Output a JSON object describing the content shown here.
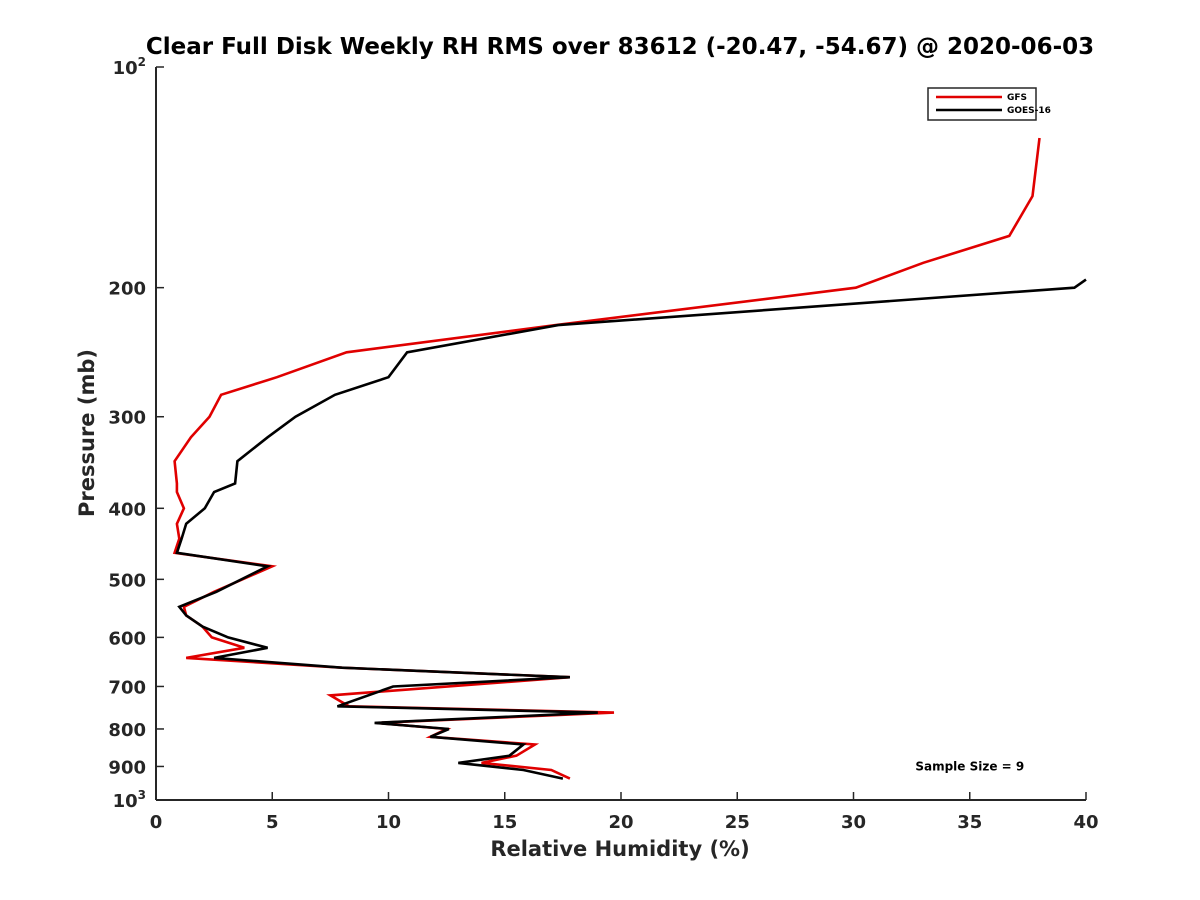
{
  "chart_data": {
    "type": "line",
    "title": "Clear Full Disk Weekly RH RMS over 83612 (-20.47, -54.67) @ 2020-06-03",
    "xlabel": "Relative Humidity (%)",
    "ylabel": "Pressure (mb)",
    "xlim": [
      0,
      40
    ],
    "ylim": [
      100,
      1000
    ],
    "y_scale": "log",
    "y_inverted": true,
    "x_ticks": [
      "0",
      "5",
      "10",
      "15",
      "20",
      "25",
      "30",
      "35",
      "40"
    ],
    "y_ticks": [
      "200",
      "300",
      "400",
      "500",
      "600",
      "700",
      "800",
      "900"
    ],
    "y_tick_values": [
      200,
      300,
      400,
      500,
      600,
      700,
      800,
      900
    ],
    "y_end_ticks": [
      {
        "value": 100,
        "base": "10",
        "exp": "2"
      },
      {
        "value": 1000,
        "base": "10",
        "exp": "3"
      }
    ],
    "grid": false,
    "legend_position": "top-right",
    "series": [
      {
        "name": "GFS",
        "color": "#e00000",
        "points": [
          [
            38.0,
            125
          ],
          [
            37.7,
            150
          ],
          [
            36.7,
            170
          ],
          [
            33.0,
            185
          ],
          [
            30.1,
            200
          ],
          [
            17.2,
            225
          ],
          [
            8.2,
            245
          ],
          [
            5.2,
            265
          ],
          [
            2.8,
            280
          ],
          [
            2.3,
            300
          ],
          [
            1.5,
            320
          ],
          [
            0.8,
            345
          ],
          [
            0.9,
            370
          ],
          [
            0.9,
            380
          ],
          [
            1.2,
            400
          ],
          [
            0.9,
            420
          ],
          [
            1.0,
            440
          ],
          [
            0.8,
            460
          ],
          [
            5.0,
            480
          ],
          [
            2.5,
            520
          ],
          [
            1.2,
            545
          ],
          [
            1.3,
            560
          ],
          [
            2.0,
            580
          ],
          [
            2.4,
            600
          ],
          [
            3.8,
            620
          ],
          [
            1.3,
            640
          ],
          [
            8.0,
            660
          ],
          [
            17.8,
            680
          ],
          [
            7.5,
            720
          ],
          [
            8.3,
            745
          ],
          [
            19.7,
            760
          ],
          [
            9.5,
            785
          ],
          [
            12.5,
            800
          ],
          [
            11.8,
            820
          ],
          [
            16.3,
            840
          ],
          [
            15.5,
            870
          ],
          [
            14.0,
            890
          ],
          [
            17.0,
            910
          ],
          [
            17.8,
            935
          ]
        ]
      },
      {
        "name": "GOES-16",
        "color": "#000000",
        "points": [
          [
            40.0,
            195
          ],
          [
            39.5,
            200
          ],
          [
            17.3,
            225
          ],
          [
            10.8,
            245
          ],
          [
            10.0,
            265
          ],
          [
            7.7,
            280
          ],
          [
            6.0,
            300
          ],
          [
            4.8,
            320
          ],
          [
            3.5,
            345
          ],
          [
            3.4,
            370
          ],
          [
            2.5,
            380
          ],
          [
            2.1,
            400
          ],
          [
            1.3,
            420
          ],
          [
            1.1,
            440
          ],
          [
            0.9,
            460
          ],
          [
            4.8,
            480
          ],
          [
            2.6,
            520
          ],
          [
            1.0,
            545
          ],
          [
            1.3,
            560
          ],
          [
            2.0,
            580
          ],
          [
            3.1,
            600
          ],
          [
            4.8,
            620
          ],
          [
            2.5,
            640
          ],
          [
            8.0,
            660
          ],
          [
            17.8,
            680
          ],
          [
            10.2,
            700
          ],
          [
            7.8,
            745
          ],
          [
            19.0,
            760
          ],
          [
            9.4,
            785
          ],
          [
            12.6,
            800
          ],
          [
            11.8,
            820
          ],
          [
            15.8,
            840
          ],
          [
            15.2,
            870
          ],
          [
            13.0,
            890
          ],
          [
            15.8,
            910
          ],
          [
            17.5,
            935
          ]
        ]
      }
    ],
    "annotations": [
      {
        "text": "Sample Size = 9",
        "x": 35.0,
        "y": 900
      }
    ]
  }
}
